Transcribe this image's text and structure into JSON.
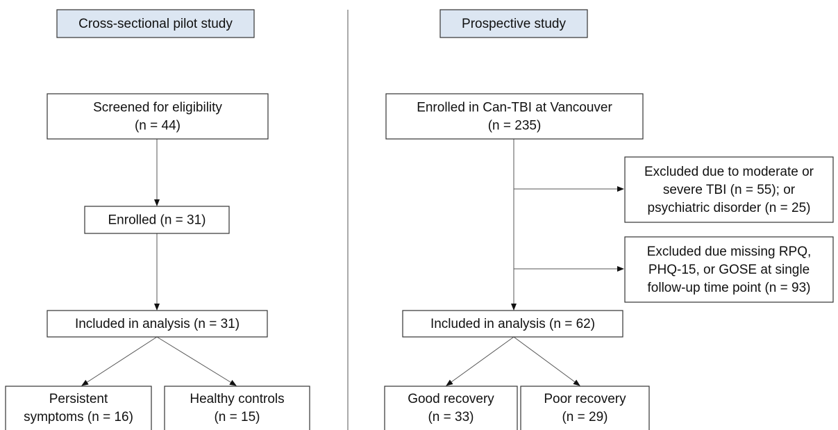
{
  "headers": [
    "Cross-sectional pilot study",
    "Prospective study"
  ],
  "nodes": [
    {
      "lines": [
        "Screened for eligibility",
        "(n = 44)"
      ]
    },
    {
      "lines": [
        "Enrolled (n = 31)"
      ]
    },
    {
      "lines": [
        "Included in analysis (n = 31)"
      ]
    },
    {
      "lines": [
        "Persistent",
        "symptoms (n = 16)"
      ]
    },
    {
      "lines": [
        "Healthy controls",
        "(n = 15)"
      ]
    },
    {
      "lines": [
        "Enrolled in Can-TBI at Vancouver",
        "(n = 235)"
      ]
    },
    {
      "lines": [
        "Excluded due to moderate or",
        "severe TBI (n = 55); or",
        "psychiatric disorder (n = 25)"
      ]
    },
    {
      "lines": [
        "Excluded due missing RPQ,",
        "PHQ-15, or GOSE at single",
        "follow-up time point (n = 93)"
      ]
    },
    {
      "lines": [
        "Included in analysis (n = 62)"
      ]
    },
    {
      "lines": [
        "Good recovery",
        "(n = 33)"
      ]
    },
    {
      "lines": [
        "Poor recovery",
        "(n = 29)"
      ]
    }
  ]
}
